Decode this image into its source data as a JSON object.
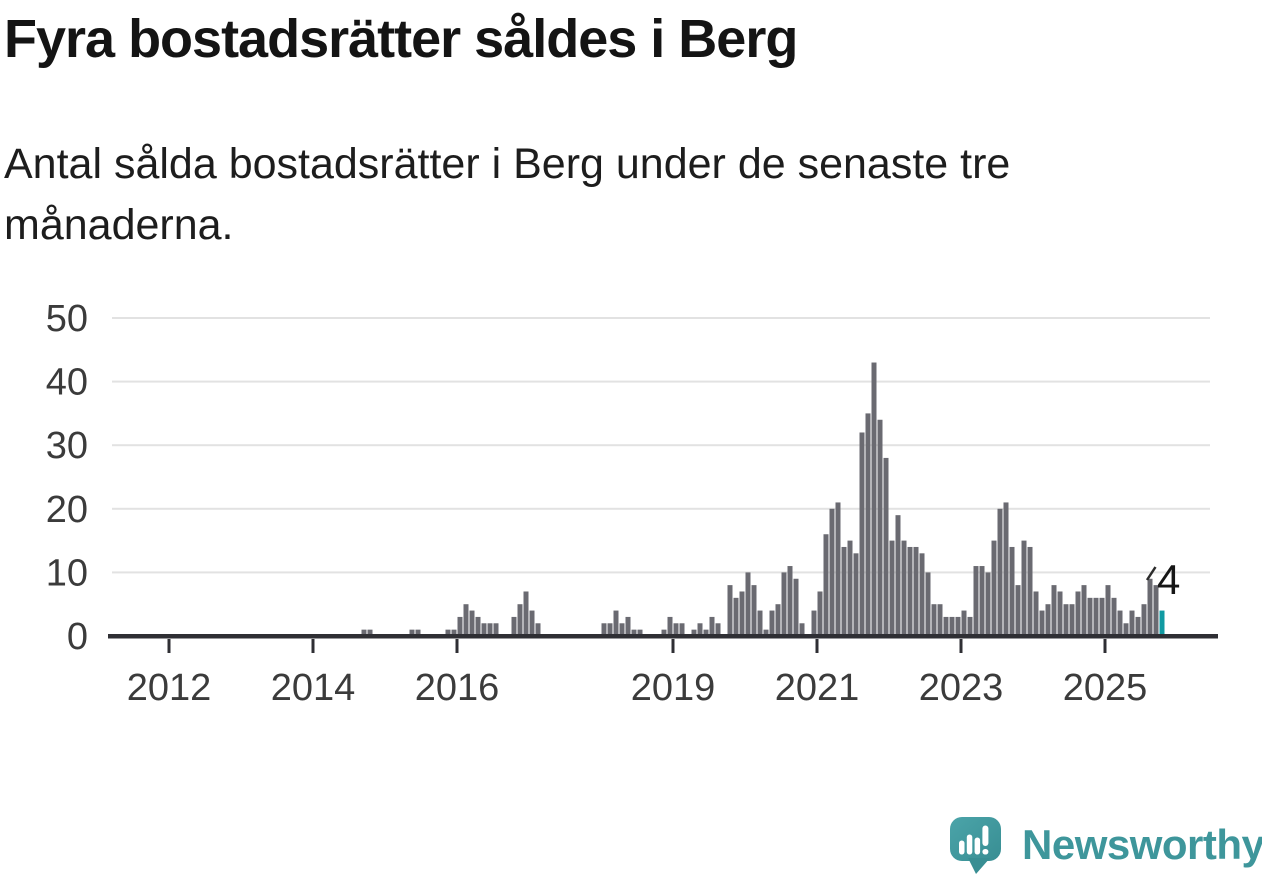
{
  "title": "Fyra bostadsrätter såldes i Berg",
  "subtitle": "Antal sålda bostadsrätter i Berg under de senaste tre månaderna.",
  "annotation": {
    "label": "4"
  },
  "branding": {
    "wordmark": "Newsworthy"
  },
  "colors": {
    "bar": "#6a6a71",
    "highlight": "#119aa2",
    "axis": "#2f2f34",
    "grid": "#e2e2e2",
    "axis_label": "#3b3b3b",
    "brand_teal": "#3e969b",
    "title_text": "#141414"
  },
  "chart_data": {
    "type": "bar",
    "title": "Fyra bostadsrätter såldes i Berg",
    "xlabel": "",
    "ylabel": "",
    "grid": "horizontal",
    "y_axis": {
      "min": 0,
      "max": 50,
      "ticks": [
        0,
        10,
        20,
        30,
        40,
        50
      ]
    },
    "x_axis": {
      "tick_labels": [
        "2012",
        "2014",
        "2016",
        "2019",
        "2021",
        "2023",
        "2025"
      ],
      "range_start": "2011-04",
      "range_end": "2026-06"
    },
    "series": [
      {
        "name": "Antal sålda bostadsrätter",
        "start_month": "2014-09",
        "values": [
          1,
          1,
          0,
          0,
          0,
          0,
          0,
          0,
          1,
          1,
          0,
          0,
          0,
          0,
          1,
          1,
          3,
          5,
          4,
          3,
          2,
          2,
          2,
          0,
          0,
          3,
          5,
          7,
          4,
          2,
          0,
          0,
          0,
          0,
          0,
          0,
          0,
          0,
          0,
          0,
          2,
          2,
          4,
          2,
          3,
          1,
          1,
          0,
          0,
          0,
          1,
          3,
          2,
          2,
          0,
          1,
          2,
          1,
          3,
          2,
          0,
          8,
          6,
          7,
          10,
          8,
          4,
          1,
          4,
          5,
          10,
          11,
          9,
          2,
          0,
          4,
          7,
          16,
          20,
          21,
          14,
          15,
          13,
          32,
          35,
          43,
          34,
          28,
          15,
          19,
          15,
          14,
          14,
          13,
          10,
          5,
          5,
          3,
          3,
          3,
          4,
          3,
          11,
          11,
          10,
          15,
          20,
          21,
          14,
          8,
          15,
          14,
          7,
          4,
          5,
          8,
          7,
          5,
          5,
          7,
          8,
          6,
          6,
          6,
          8,
          6,
          4,
          2,
          4,
          3,
          5,
          9,
          8,
          4
        ]
      }
    ],
    "highlight": {
      "month": "2025-10",
      "value": 4,
      "label": "4"
    }
  }
}
